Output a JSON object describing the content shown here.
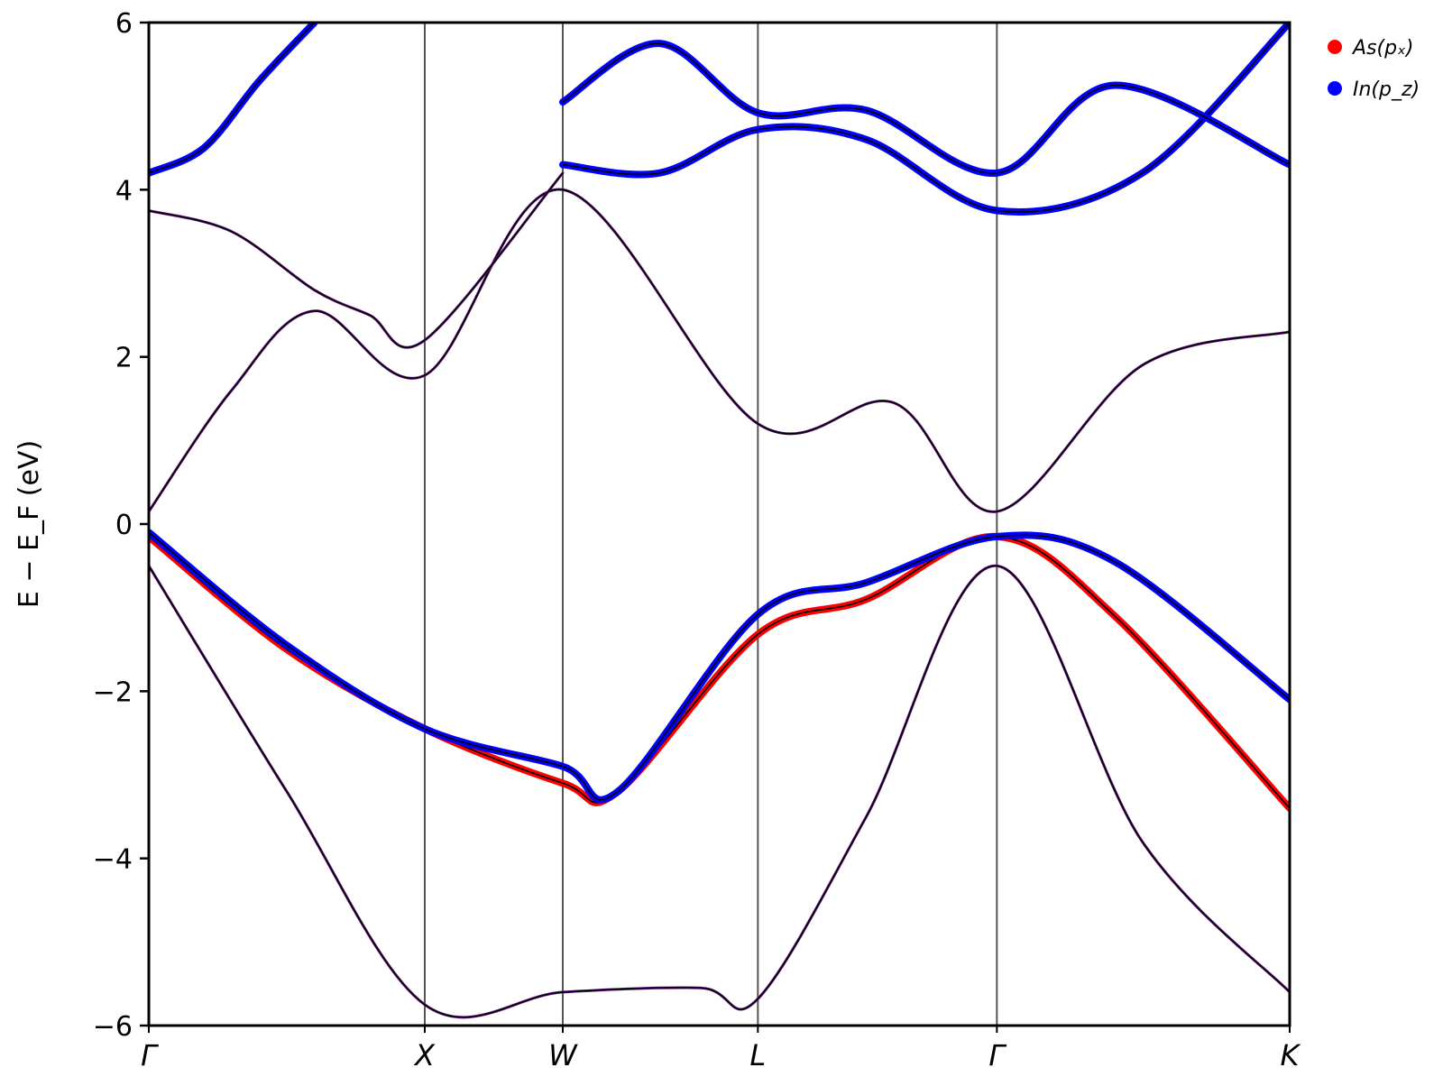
{
  "colors": {
    "as_px": "#ff0000",
    "in_pz": "#0000ff",
    "band": "#000000",
    "kline": "#555555"
  },
  "legend": [
    {
      "label": "As(pₓ)",
      "color": "#ff0000"
    },
    {
      "label": "In(p_z)",
      "color": "#0000ff"
    }
  ],
  "chart_data": {
    "type": "line",
    "title": "",
    "xlabel": "",
    "ylabel": "E − E_F (eV)",
    "ylim": [
      -6,
      6
    ],
    "yticks": [
      -6,
      -4,
      -2,
      0,
      2,
      4,
      6
    ],
    "ytick_labels": [
      "−6",
      "−4",
      "−2",
      "0",
      "2",
      "4",
      "6"
    ],
    "kpath": [
      "Γ",
      "X",
      "W",
      "L",
      "Γ",
      "K"
    ],
    "kpoint_positions": [
      0.0,
      1.0,
      1.5,
      2.207,
      3.073,
      4.134
    ],
    "grid": false,
    "legend_position": "top-right (outside plot)",
    "series": [
      {
        "name": "band-1",
        "projection": "mixed",
        "x": [
          0.0,
          0.5,
          1.0,
          1.5,
          2.0,
          2.207,
          2.6,
          3.073,
          3.6,
          4.134
        ],
        "y": [
          -0.5,
          -3.2,
          -5.75,
          -5.6,
          -5.55,
          -5.68,
          -3.5,
          -0.5,
          -3.8,
          -5.6
        ]
      },
      {
        "name": "band-2",
        "projection": "As(px)",
        "x": [
          0.0,
          0.5,
          1.0,
          1.5,
          1.7,
          2.207,
          2.6,
          3.073,
          3.5,
          4.134
        ],
        "y": [
          -0.15,
          -1.5,
          -2.45,
          -3.1,
          -3.2,
          -1.32,
          -0.9,
          -0.15,
          -1.1,
          -3.4
        ]
      },
      {
        "name": "band-3",
        "projection": "In(pz)",
        "x": [
          0.0,
          0.5,
          1.0,
          1.5,
          1.7,
          2.207,
          2.6,
          3.073,
          3.5,
          4.134
        ],
        "y": [
          -0.1,
          -1.45,
          -2.45,
          -2.9,
          -3.2,
          -1.08,
          -0.7,
          -0.15,
          -0.45,
          -2.1
        ]
      },
      {
        "name": "band-4",
        "projection": "mixed",
        "x": [
          0.0,
          0.3,
          0.6,
          1.0,
          1.5,
          2.207,
          2.7,
          3.073,
          3.6,
          4.134
        ],
        "y": [
          0.15,
          1.6,
          2.55,
          1.78,
          4.0,
          1.2,
          1.45,
          0.15,
          1.9,
          2.3
        ]
      },
      {
        "name": "band-5",
        "projection": "mixed",
        "x": [
          0.0,
          0.3,
          0.6,
          0.8,
          1.0,
          1.5
        ],
        "y": [
          3.75,
          3.5,
          2.8,
          2.5,
          2.2,
          4.2
        ]
      },
      {
        "name": "band-6",
        "projection": "In(pz)",
        "x": [
          0.0,
          0.2,
          0.4,
          0.6
        ],
        "y": [
          4.2,
          4.5,
          5.3,
          6.0
        ]
      },
      {
        "name": "band-7",
        "projection": "In(pz)",
        "x": [
          1.5,
          1.85,
          2.207,
          2.6,
          3.073,
          3.6,
          4.134
        ],
        "y": [
          4.3,
          4.2,
          4.72,
          4.6,
          3.75,
          4.2,
          6.0
        ]
      },
      {
        "name": "band-8",
        "projection": "In(pz)",
        "x": [
          1.5,
          1.85,
          2.207,
          2.6,
          3.073,
          3.5,
          4.134
        ],
        "y": [
          5.05,
          5.75,
          4.92,
          4.95,
          4.2,
          5.25,
          4.3
        ]
      }
    ]
  }
}
